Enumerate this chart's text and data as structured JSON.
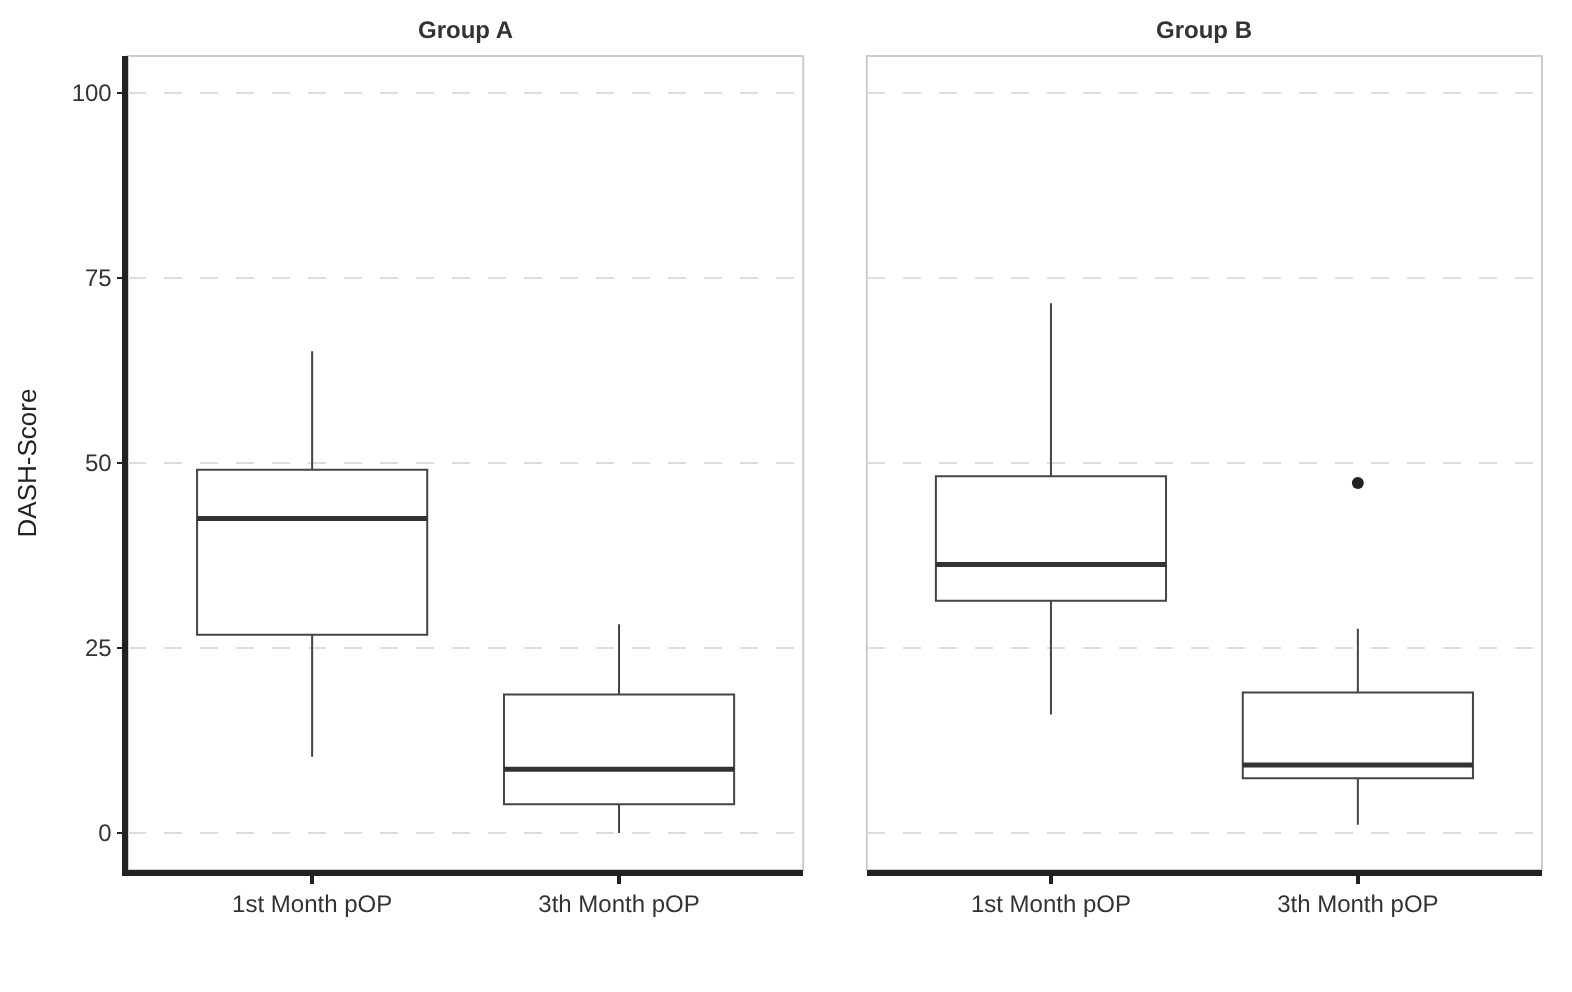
{
  "chart_data": [
    {
      "type": "box",
      "title": "Group A",
      "ylabel": "DASH-Score",
      "categories": [
        "1st Month pOP",
        "3th Month pOP"
      ],
      "boxes": [
        {
          "low": 10.3,
          "q1": 26.8,
          "median": 42.5,
          "q3": 49.1,
          "high": 65.1
        },
        {
          "low": 0,
          "q1": 3.9,
          "median": 8.6,
          "q3": 18.7,
          "high": 28.2
        }
      ],
      "ylim": [
        -5,
        105
      ],
      "yticks": [
        0,
        25,
        50,
        75,
        100
      ],
      "grid": "y"
    },
    {
      "type": "box",
      "title": "Group B",
      "categories": [
        "1st Month pOP",
        "3th Month pOP"
      ],
      "boxes": [
        {
          "low": 16.0,
          "q1": 31.4,
          "median": 36.3,
          "q3": 48.2,
          "high": 71.6
        },
        {
          "low": 1.1,
          "q1": 7.4,
          "median": 9.2,
          "q3": 19.0,
          "high": 27.6,
          "outliers": [
            47.3
          ]
        }
      ],
      "ylim": [
        -5,
        105
      ],
      "yticks": [
        0,
        25,
        50,
        75,
        100
      ],
      "grid": "y",
      "tick_labels": "x"
    }
  ]
}
